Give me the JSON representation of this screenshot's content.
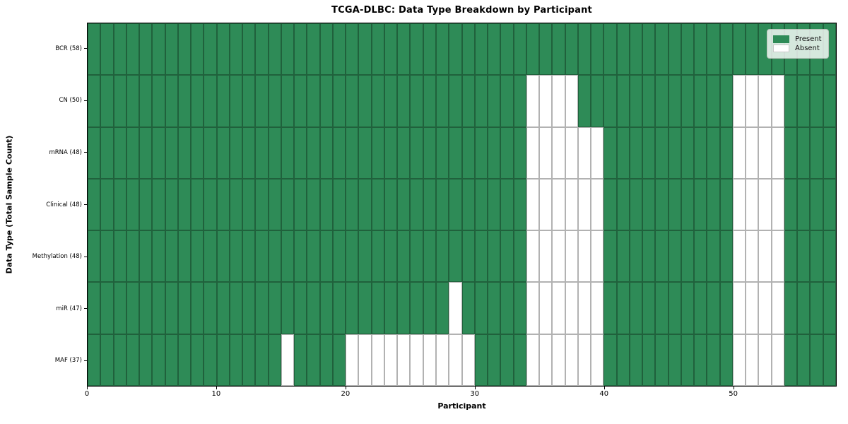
{
  "chart_data": {
    "type": "heatmap",
    "title": "TCGA-DLBC: Data Type Breakdown by Participant",
    "xlabel": "Participant",
    "ylabel": "Data Type (Total Sample Count)",
    "n_participants": 58,
    "xlim": [
      0,
      58
    ],
    "x_ticks": [
      "0",
      "10",
      "20",
      "30",
      "40",
      "50"
    ],
    "x_tick_values": [
      0,
      10,
      20,
      30,
      40,
      50
    ],
    "grid": true,
    "legend_position": "upper right",
    "legend": [
      {
        "label": "Present",
        "state": "present"
      },
      {
        "label": "Absent",
        "state": "absent"
      }
    ],
    "colors": {
      "present": "#2e8b57",
      "absent": "#ffffff",
      "cell_border": "rgba(0,0,0,0.30)",
      "frame": "#000000"
    },
    "rows": [
      {
        "label": "BCR (58)",
        "data_type": "BCR",
        "total": 58,
        "absent": []
      },
      {
        "label": "CN (50)",
        "data_type": "CN",
        "total": 50,
        "absent": [
          34,
          35,
          36,
          37,
          50,
          51,
          52,
          53
        ]
      },
      {
        "label": "mRNA (48)",
        "data_type": "mRNA",
        "total": 48,
        "absent": [
          34,
          35,
          36,
          37,
          38,
          39,
          50,
          51,
          52,
          53
        ]
      },
      {
        "label": "Clinical (48)",
        "data_type": "Clinical",
        "total": 48,
        "absent": [
          34,
          35,
          36,
          37,
          38,
          39,
          50,
          51,
          52,
          53
        ]
      },
      {
        "label": "Methylation (48)",
        "data_type": "Methylation",
        "total": 48,
        "absent": [
          34,
          35,
          36,
          37,
          38,
          39,
          50,
          51,
          52,
          53
        ]
      },
      {
        "label": "miR (47)",
        "data_type": "miR",
        "total": 47,
        "absent": [
          28,
          34,
          35,
          36,
          37,
          38,
          39,
          50,
          51,
          52,
          53
        ]
      },
      {
        "label": "MAF (37)",
        "data_type": "MAF",
        "total": 37,
        "absent": [
          15,
          20,
          21,
          22,
          23,
          24,
          25,
          26,
          27,
          28,
          29,
          34,
          35,
          36,
          37,
          38,
          39,
          50,
          51,
          52,
          53
        ]
      }
    ]
  }
}
